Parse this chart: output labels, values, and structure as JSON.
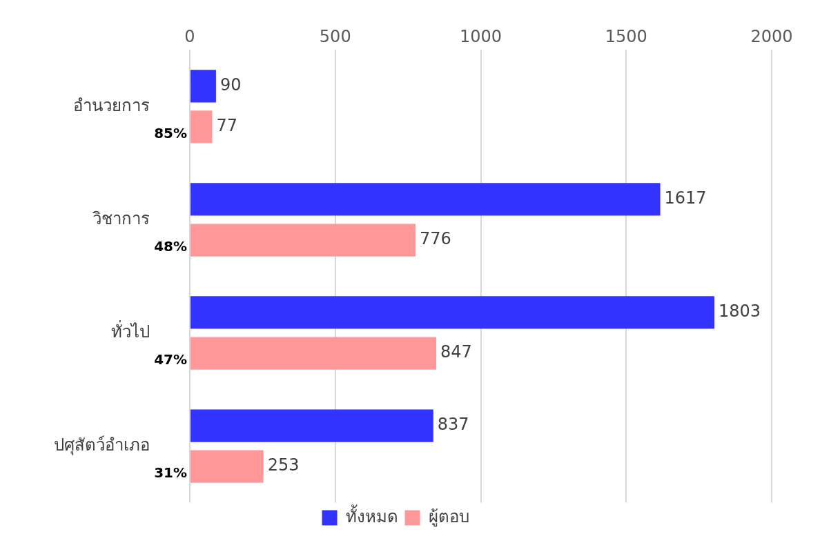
{
  "chart_data": {
    "type": "bar",
    "orientation": "horizontal",
    "categories": [
      "อำนวยการ",
      "วิชาการ",
      "ทั่วไป",
      "ปศุสัตว์อำเภอ"
    ],
    "series": [
      {
        "name": "ทั้งหมด",
        "color": "#3333ff",
        "values": [
          90,
          1617,
          1803,
          837
        ]
      },
      {
        "name": "ผู้ตอบ",
        "color": "#ff9999",
        "values": [
          77,
          776,
          847,
          253
        ]
      }
    ],
    "xlim": [
      0,
      2000
    ],
    "xticks": [
      0,
      500,
      1000,
      1500,
      2000
    ],
    "grid": "x",
    "legend": "bottom",
    "data_labels": true,
    "annotations": [
      "85%",
      "48%",
      "47%",
      "31%"
    ]
  }
}
